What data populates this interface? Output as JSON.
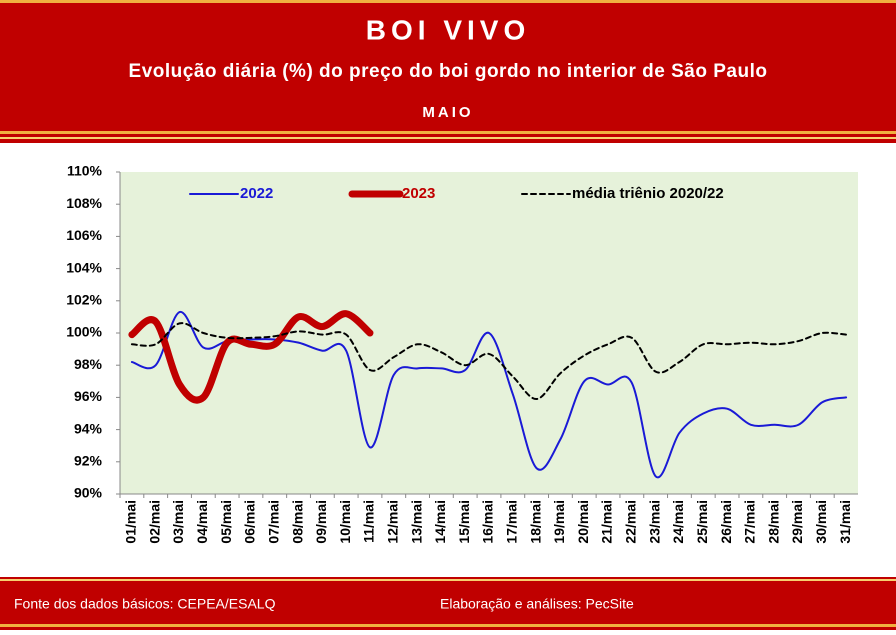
{
  "chart_data": {
    "type": "line",
    "title": "BOI VIVO",
    "subtitle": "Evolução diária (%) do preço do boi gordo no interior de São Paulo",
    "period": "MAIO",
    "source": "Fonte dos dados básicos: CEPEA/ESALQ",
    "credit": "Elaboração e análises: PecSite",
    "categories": [
      "01/mai",
      "02/mai",
      "03/mai",
      "04/mai",
      "05/mai",
      "06/mai",
      "07/mai",
      "08/mai",
      "09/mai",
      "10/mai",
      "11/mai",
      "12/mai",
      "13/mai",
      "14/mai",
      "15/mai",
      "16/mai",
      "17/mai",
      "18/mai",
      "19/mai",
      "20/mai",
      "21/mai",
      "22/mai",
      "23/mai",
      "24/mai",
      "25/mai",
      "26/mai",
      "27/mai",
      "28/mai",
      "29/mai",
      "30/mai",
      "31/mai"
    ],
    "series": [
      {
        "name": "2022",
        "color": "#1a1ad6",
        "line_style": "solid",
        "values": [
          98.2,
          98.0,
          101.3,
          99.1,
          99.5,
          99.6,
          99.6,
          99.4,
          98.9,
          98.9,
          92.9,
          97.4,
          97.8,
          97.8,
          97.7,
          100.0,
          96.2,
          91.6,
          93.4,
          97.0,
          96.8,
          96.9,
          91.1,
          93.8,
          95.0,
          95.3,
          94.3,
          94.3,
          94.3,
          95.7,
          96.0
        ]
      },
      {
        "name": "2023",
        "color": "#c00000",
        "line_style": "thick",
        "values": [
          99.9,
          100.7,
          96.8,
          96.0,
          99.4,
          99.3,
          99.3,
          101.0,
          100.4,
          101.2,
          100.0,
          null,
          null,
          null,
          null,
          null,
          null,
          null,
          null,
          null,
          null,
          null,
          null,
          null,
          null,
          null,
          null,
          null,
          null,
          null,
          null
        ]
      },
      {
        "name": "média triênio 2020/22",
        "color": "#000000",
        "line_style": "dashed",
        "values": [
          99.3,
          99.3,
          100.6,
          100.0,
          99.7,
          99.7,
          99.8,
          100.1,
          99.9,
          99.9,
          97.7,
          98.5,
          99.3,
          98.8,
          98.0,
          98.7,
          97.3,
          95.9,
          97.5,
          98.6,
          99.3,
          99.7,
          97.6,
          98.2,
          99.3,
          99.3,
          99.4,
          99.3,
          99.5,
          100.0,
          99.9
        ]
      }
    ],
    "ylim": [
      90,
      110
    ],
    "yticks": [
      {
        "value": 90,
        "label": "90%"
      },
      {
        "value": 92,
        "label": "92%"
      },
      {
        "value": 94,
        "label": "94%"
      },
      {
        "value": 96,
        "label": "96%"
      },
      {
        "value": 98,
        "label": "98%"
      },
      {
        "value": 100,
        "label": "100%"
      },
      {
        "value": 102,
        "label": "102%"
      },
      {
        "value": 104,
        "label": "104%"
      },
      {
        "value": 106,
        "label": "106%"
      },
      {
        "value": 108,
        "label": "108%"
      },
      {
        "value": 110,
        "label": "110%"
      }
    ],
    "legend": "top",
    "plot_background": "#e6f2da"
  }
}
